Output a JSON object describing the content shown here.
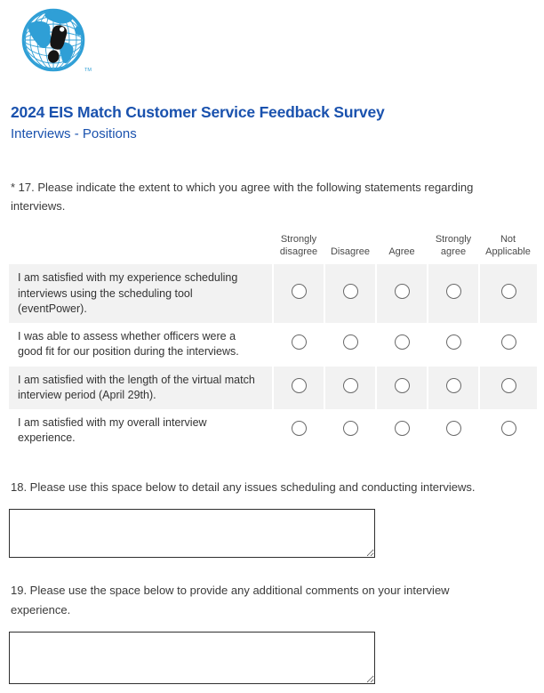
{
  "logo": {
    "name": "eis-globe-footprint-logo",
    "trademark": "TM"
  },
  "header": {
    "title": "2024 EIS Match Customer Service Feedback Survey",
    "subtitle": "Interviews - Positions"
  },
  "colors": {
    "title_blue": "#1a52ae",
    "globe_blue": "#2f9fd6",
    "row_alt_bg": "#f2f2f2",
    "body_text": "#333333"
  },
  "question17": {
    "label": "* 17. Please indicate the extent to which you agree with the following statements regarding interviews.",
    "columns": [
      "Strongly disagree",
      "Disagree",
      "Agree",
      "Strongly agree",
      "Not Applicable"
    ],
    "rows": [
      "I am satisfied with my experience scheduling interviews using the scheduling tool (eventPower).",
      "I was able to assess whether officers were a good fit for our position during the interviews.",
      "I am satisfied with the length of the virtual match interview period (April 29th).",
      "I am satisfied with my overall interview experience."
    ]
  },
  "question18": {
    "label": "18. Please use this space below to detail any issues scheduling and conducting interviews.",
    "value": "",
    "placeholder": ""
  },
  "question19": {
    "label": "19. Please use the space below to provide any additional comments on your interview experience.",
    "value": "",
    "placeholder": ""
  }
}
